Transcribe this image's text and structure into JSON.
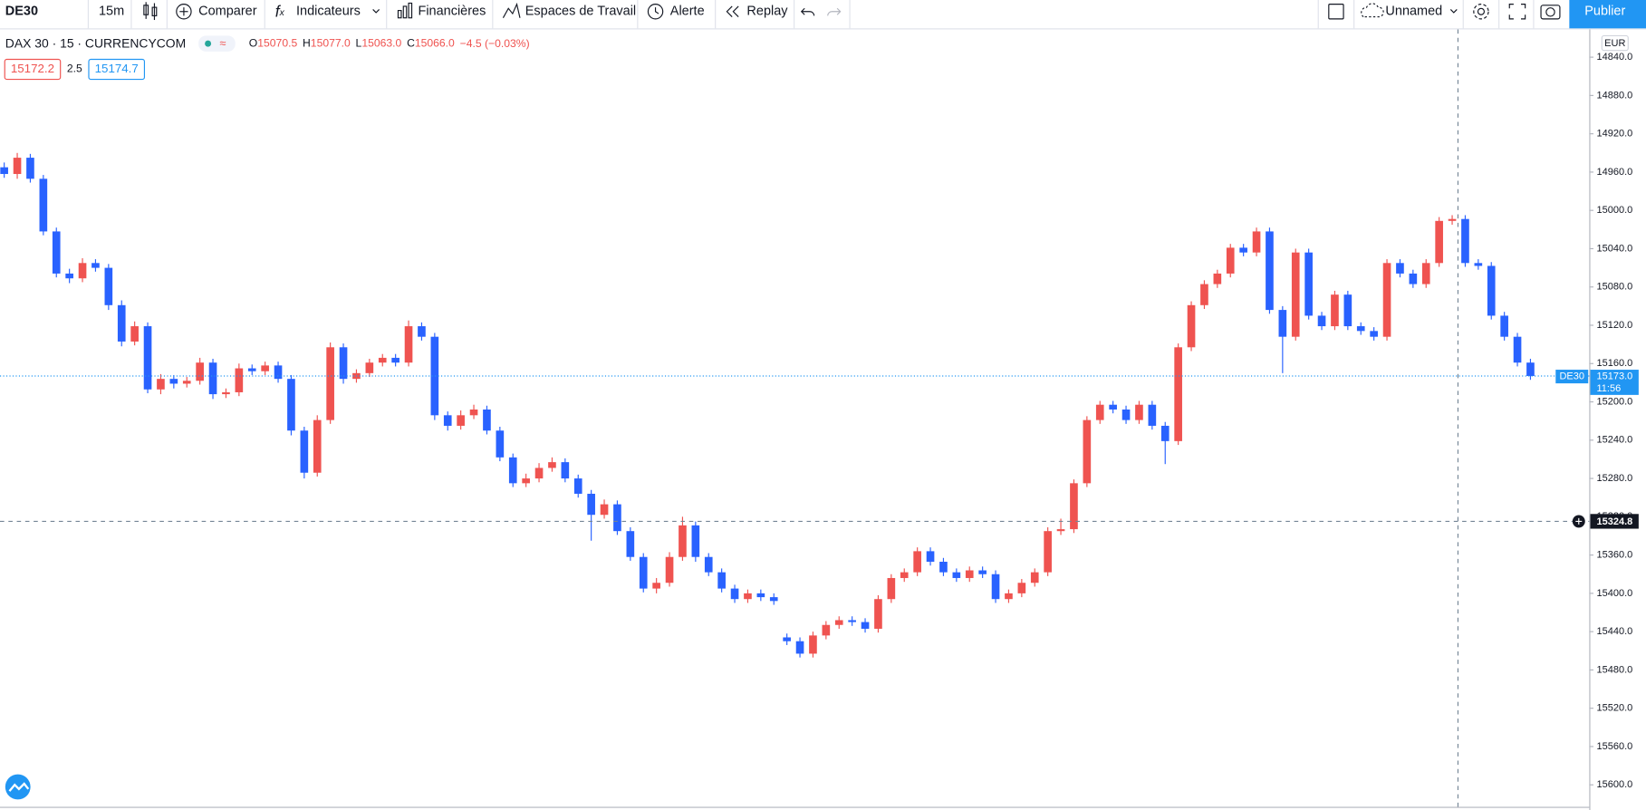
{
  "toolbar": {
    "symbol": "DE30",
    "interval": "15m",
    "compare": "Comparer",
    "indicators": "Indicateurs",
    "financials": "Financières",
    "workspaces": "Espaces de Travail",
    "alert": "Alerte",
    "replay": "Replay",
    "layout_name": "Unnamed",
    "publish": "Publier"
  },
  "legend": {
    "title": "DAX 30 · 15 · CURRENCYCOM",
    "ohlc": [
      {
        "label": "O",
        "value": "15070.5"
      },
      {
        "label": "H",
        "value": "15077.0"
      },
      {
        "label": "L",
        "value": "15063.0"
      },
      {
        "label": "C",
        "value": "15066.0"
      }
    ],
    "change": "−4.5 (−0.03%)",
    "bid": "15172.2",
    "spread": "2.5",
    "ask": "15174.7"
  },
  "chart_data": {
    "type": "candlestick",
    "currency": "EUR",
    "inverted": true,
    "ylim": [
      14811,
      15623
    ],
    "yticks": [
      {
        "value": 14840,
        "label": "14840.0"
      },
      {
        "value": 14880,
        "label": "14880.0"
      },
      {
        "value": 14920,
        "label": "14920.0"
      },
      {
        "value": 14960,
        "label": "14960.0"
      },
      {
        "value": 15000,
        "label": "15000.0"
      },
      {
        "value": 15040,
        "label": "15040.0"
      },
      {
        "value": 15080,
        "label": "15080.0"
      },
      {
        "value": 15120,
        "label": "15120.0"
      },
      {
        "value": 15160,
        "label": "15160.0"
      },
      {
        "value": 15200,
        "label": "15200.0"
      },
      {
        "value": 15240,
        "label": "15240.0"
      },
      {
        "value": 15280,
        "label": "15280.0"
      },
      {
        "value": 15320,
        "label": "15320.0"
      },
      {
        "value": 15360,
        "label": "15360.0"
      },
      {
        "value": 15400,
        "label": "15400.0"
      },
      {
        "value": 15440,
        "label": "15440.0"
      },
      {
        "value": 15480,
        "label": "15480.0"
      },
      {
        "value": 15520,
        "label": "15520.0"
      },
      {
        "value": 15560,
        "label": "15560.0"
      },
      {
        "value": 15600,
        "label": "15600.0"
      }
    ],
    "up_color": "#2962ff",
    "down_color": "#ef5350",
    "last_price": {
      "value": 15173,
      "label": "15173.0",
      "symbol": "DE30",
      "countdown": "11:56"
    },
    "crosshair": {
      "value": 15324.8,
      "label": "15324.8"
    },
    "ohlc": [
      [
        14955,
        14966,
        14950,
        14962
      ],
      [
        14962,
        14967,
        14940,
        14945
      ],
      [
        14945,
        14971,
        14941,
        14967
      ],
      [
        14967,
        15026,
        14963,
        15022
      ],
      [
        15022,
        15070,
        15018,
        15066
      ],
      [
        15066,
        15076,
        15061,
        15071
      ],
      [
        15071,
        15075,
        15050,
        15055
      ],
      [
        15055,
        15064,
        15051,
        15060
      ],
      [
        15060,
        15104,
        15056,
        15099
      ],
      [
        15099,
        15142,
        15094,
        15137
      ],
      [
        15137,
        15141,
        15116,
        15121
      ],
      [
        15121,
        15191,
        15117,
        15187
      ],
      [
        15187,
        15192,
        15171,
        15176
      ],
      [
        15176,
        15186,
        15172,
        15181
      ],
      [
        15181,
        15185,
        15174,
        15178
      ],
      [
        15178,
        15182,
        15154,
        15159
      ],
      [
        15159,
        15197,
        15155,
        15192
      ],
      [
        15192,
        15196,
        15186,
        15190
      ],
      [
        15190,
        15194,
        15160,
        15165
      ],
      [
        15165,
        15172,
        15161,
        15168
      ],
      [
        15168,
        15172,
        15158,
        15162
      ],
      [
        15162,
        15180,
        15158,
        15176
      ],
      [
        15176,
        15235,
        15172,
        15230
      ],
      [
        15230,
        15280,
        15226,
        15274
      ],
      [
        15274,
        15278,
        15214,
        15219
      ],
      [
        15219,
        15223,
        15138,
        15143
      ],
      [
        15143,
        15181,
        15139,
        15176
      ],
      [
        15176,
        15180,
        15166,
        15170
      ],
      [
        15170,
        15174,
        15155,
        15159
      ],
      [
        15159,
        15163,
        15150,
        15154
      ],
      [
        15154,
        15163,
        15150,
        15159
      ],
      [
        15159,
        15163,
        15115,
        15121
      ],
      [
        15121,
        15136,
        15117,
        15132
      ],
      [
        15132,
        15219,
        15128,
        15214
      ],
      [
        15214,
        15230,
        15210,
        15225
      ],
      [
        15225,
        15229,
        15209,
        15214
      ],
      [
        15214,
        15218,
        15203,
        15208
      ],
      [
        15208,
        15234,
        15204,
        15230
      ],
      [
        15230,
        15262,
        15226,
        15258
      ],
      [
        15258,
        15289,
        15254,
        15285
      ],
      [
        15285,
        15289,
        15275,
        15280
      ],
      [
        15280,
        15284,
        15264,
        15269
      ],
      [
        15269,
        15273,
        15258,
        15263
      ],
      [
        15263,
        15284,
        15259,
        15280
      ],
      [
        15280,
        15300,
        15276,
        15296
      ],
      [
        15296,
        15345,
        15292,
        15318
      ],
      [
        15318,
        15322,
        15302,
        15307
      ],
      [
        15307,
        15339,
        15303,
        15335
      ],
      [
        15335,
        15366,
        15331,
        15362
      ],
      [
        15362,
        15399,
        15358,
        15395
      ],
      [
        15395,
        15400,
        15384,
        15389
      ],
      [
        15389,
        15393,
        15357,
        15362
      ],
      [
        15362,
        15366,
        15320,
        15329
      ],
      [
        15329,
        15367,
        15325,
        15362
      ],
      [
        15362,
        15382,
        15358,
        15378
      ],
      [
        15378,
        15399,
        15374,
        15395
      ],
      [
        15395,
        15410,
        15391,
        15406
      ],
      [
        15406,
        15410,
        15396,
        15400
      ],
      [
        15400,
        15408,
        15396,
        15404
      ],
      [
        15404,
        15412,
        15400,
        15408
      ],
      [
        15446,
        15454,
        15442,
        15450
      ],
      [
        15450,
        15467,
        15446,
        15463
      ],
      [
        15463,
        15467,
        15440,
        15444
      ],
      [
        15444,
        15448,
        15429,
        15433
      ],
      [
        15433,
        15437,
        15424,
        15428
      ],
      [
        15428,
        15434,
        15424,
        15430
      ],
      [
        15430,
        15441,
        15426,
        15437
      ],
      [
        15437,
        15441,
        15402,
        15406
      ],
      [
        15406,
        15410,
        15380,
        15384
      ],
      [
        15384,
        15388,
        15374,
        15378
      ],
      [
        15378,
        15382,
        15352,
        15356
      ],
      [
        15356,
        15371,
        15352,
        15367
      ],
      [
        15367,
        15382,
        15363,
        15378
      ],
      [
        15378,
        15388,
        15374,
        15384
      ],
      [
        15384,
        15388,
        15372,
        15376
      ],
      [
        15376,
        15384,
        15372,
        15380
      ],
      [
        15380,
        15410,
        15376,
        15406
      ],
      [
        15406,
        15410,
        15396,
        15400
      ],
      [
        15400,
        15404,
        15385,
        15389
      ],
      [
        15389,
        15393,
        15374,
        15378
      ],
      [
        15378,
        15382,
        15331,
        15335
      ],
      [
        15335,
        15339,
        15322,
        15333
      ],
      [
        15333,
        15337,
        15281,
        15285
      ],
      [
        15285,
        15289,
        15215,
        15219
      ],
      [
        15219,
        15223,
        15199,
        15203
      ],
      [
        15203,
        15212,
        15199,
        15208
      ],
      [
        15208,
        15223,
        15204,
        15219
      ],
      [
        15219,
        15223,
        15199,
        15203
      ],
      [
        15203,
        15229,
        15199,
        15225
      ],
      [
        15225,
        15265,
        15221,
        15241
      ],
      [
        15241,
        15245,
        15139,
        15143
      ],
      [
        15143,
        15147,
        15095,
        15099
      ],
      [
        15099,
        15103,
        15073,
        15077
      ],
      [
        15077,
        15081,
        15062,
        15066
      ],
      [
        15066,
        15070,
        15035,
        15039
      ],
      [
        15039,
        15048,
        15035,
        15044
      ],
      [
        15044,
        15048,
        15018,
        15022
      ],
      [
        15022,
        15108,
        15018,
        15104
      ],
      [
        15104,
        15170,
        15100,
        15132
      ],
      [
        15132,
        15136,
        15040,
        15044
      ],
      [
        15044,
        15114,
        15040,
        15110
      ],
      [
        15110,
        15125,
        15106,
        15121
      ],
      [
        15121,
        15125,
        15084,
        15088
      ],
      [
        15088,
        15125,
        15084,
        15121
      ],
      [
        15121,
        15130,
        15117,
        15126
      ],
      [
        15126,
        15136,
        15122,
        15132
      ],
      [
        15132,
        15136,
        15051,
        15055
      ],
      [
        15055,
        15070,
        15051,
        15066
      ],
      [
        15066,
        15081,
        15062,
        15077
      ],
      [
        15077,
        15081,
        15051,
        15055
      ],
      [
        15055,
        15059,
        15007,
        15011
      ],
      [
        15011,
        15015,
        15005,
        15009
      ],
      [
        15009,
        15059,
        15005,
        15055
      ],
      [
        15055,
        15062,
        15051,
        15058
      ],
      [
        15058,
        15114,
        15054,
        15110
      ],
      [
        15110,
        15136,
        15106,
        15132
      ],
      [
        15132,
        15163,
        15128,
        15159
      ],
      [
        15159,
        15177,
        15155,
        15173
      ]
    ]
  }
}
